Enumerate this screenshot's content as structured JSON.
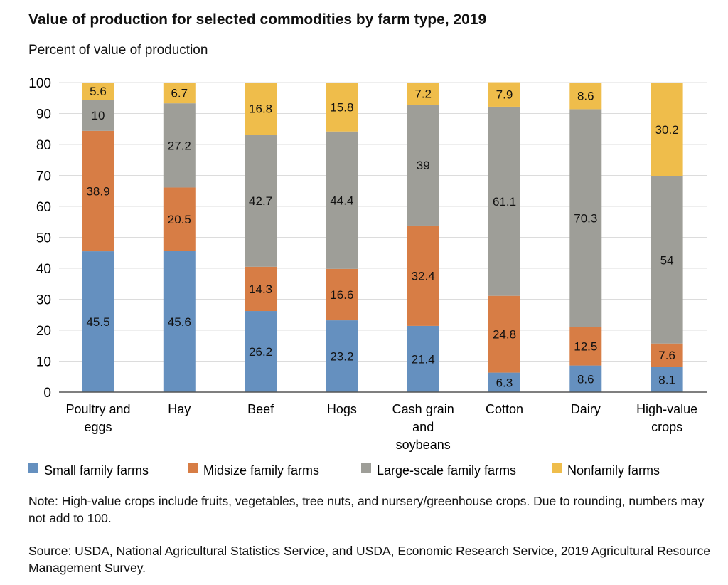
{
  "chart_data": {
    "type": "bar",
    "stacked": true,
    "title": "Value of production for selected commodities by farm type, 2019",
    "ylabel": "Percent of value of production",
    "ylim": [
      0,
      100
    ],
    "yticks": [
      0,
      10,
      20,
      30,
      40,
      50,
      60,
      70,
      80,
      90,
      100
    ],
    "grid": true,
    "legend": "bottom",
    "categories": [
      [
        "Poultry and",
        "eggs"
      ],
      [
        "Hay"
      ],
      [
        "Beef"
      ],
      [
        "Hogs"
      ],
      [
        "Cash grain",
        "and",
        "soybeans"
      ],
      [
        "Cotton"
      ],
      [
        "Dairy"
      ],
      [
        "High-value",
        "crops"
      ]
    ],
    "series": [
      {
        "name": "Small family farms",
        "color": "#6590bf",
        "values": [
          45.5,
          45.6,
          26.2,
          23.2,
          21.4,
          6.3,
          8.6,
          8.1
        ]
      },
      {
        "name": "Midsize family farms",
        "color": "#d77d45",
        "values": [
          38.9,
          20.5,
          14.3,
          16.6,
          32.4,
          24.8,
          12.5,
          7.6
        ]
      },
      {
        "name": "Large-scale family farms",
        "color": "#9e9e98",
        "values": [
          10,
          27.2,
          42.7,
          44.4,
          39,
          61.1,
          70.3,
          54
        ]
      },
      {
        "name": "Nonfamily farms",
        "color": "#efbd4b",
        "values": [
          5.6,
          6.7,
          16.8,
          15.8,
          7.2,
          7.9,
          8.6,
          30.2
        ]
      }
    ]
  },
  "note": "Note: High-value crops include fruits, vegetables, tree nuts, and nursery/greenhouse crops. Due to rounding, numbers may not add to 100.",
  "source": "Source: USDA, National Agricultural Statistics Service, and USDA, Economic Research Service, 2019 Agricultural Resource Management Survey."
}
